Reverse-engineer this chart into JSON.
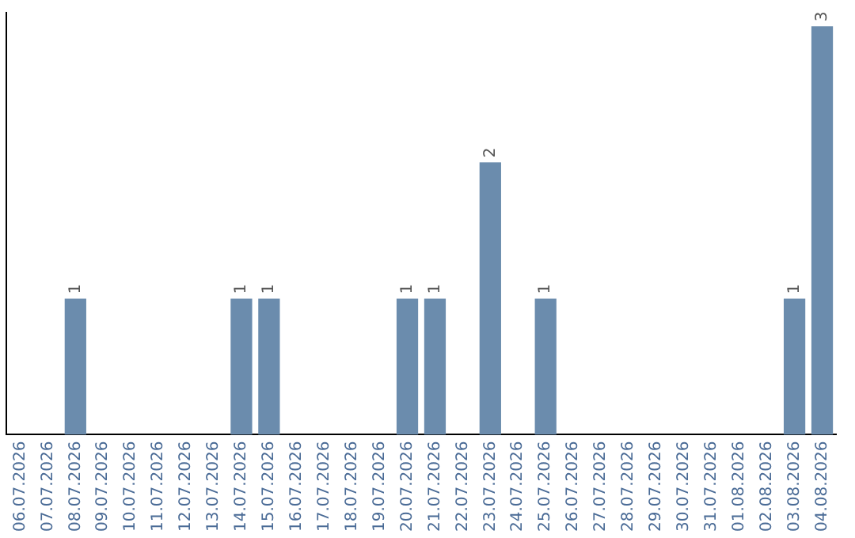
{
  "chart_data": {
    "type": "bar",
    "categories": [
      "06.07.2026",
      "07.07.2026",
      "08.07.2026",
      "09.07.2026",
      "10.07.2026",
      "11.07.2026",
      "12.07.2026",
      "13.07.2026",
      "14.07.2026",
      "15.07.2026",
      "16.07.2026",
      "17.07.2026",
      "18.07.2026",
      "19.07.2026",
      "20.07.2026",
      "21.07.2026",
      "22.07.2026",
      "23.07.2026",
      "24.07.2026",
      "25.07.2026",
      "26.07.2026",
      "27.07.2026",
      "28.07.2026",
      "29.07.2026",
      "30.07.2026",
      "31.07.2026",
      "01.08.2026",
      "02.08.2026",
      "03.08.2026",
      "04.08.2026"
    ],
    "values": [
      0,
      0,
      1,
      0,
      0,
      0,
      0,
      0,
      1,
      1,
      0,
      0,
      0,
      0,
      1,
      1,
      0,
      2,
      0,
      1,
      0,
      0,
      0,
      0,
      0,
      0,
      0,
      0,
      1,
      3
    ],
    "value_labels": [
      null,
      null,
      "1",
      null,
      null,
      null,
      null,
      null,
      "1",
      "1",
      null,
      null,
      null,
      null,
      "1",
      "1",
      null,
      "2",
      null,
      "1",
      null,
      null,
      null,
      null,
      null,
      null,
      null,
      null,
      "1",
      "3"
    ],
    "color": "#6b8cad",
    "ylim": [
      0,
      3.1
    ],
    "grid": false,
    "legend": false
  }
}
